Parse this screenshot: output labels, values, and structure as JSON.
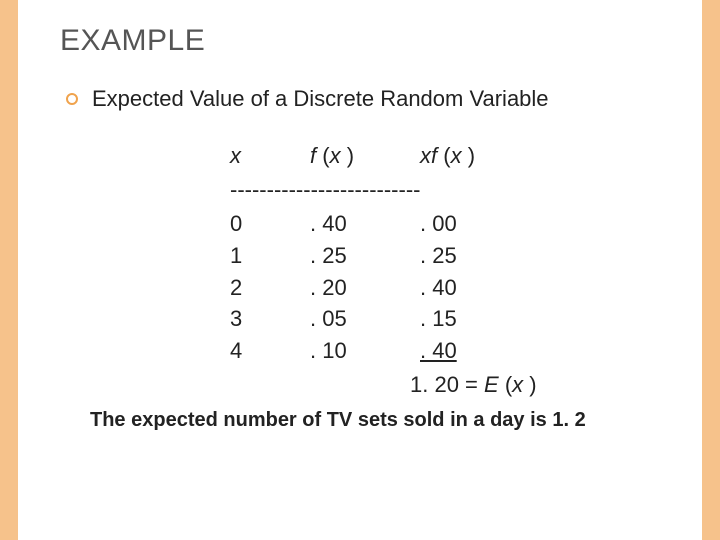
{
  "colors": {
    "stripe": "#f6c28b",
    "bullet_border": "#f0a34d",
    "title": "#555555",
    "body": "#222222",
    "background": "#ffffff"
  },
  "title": "EXAMPLE",
  "bullet_text": "Expected Value of a Discrete Random Variable",
  "table": {
    "header": {
      "x": "x",
      "fx_label_f": "f",
      "fx_label_paren": " (",
      "fx_label_x": "x",
      "fx_label_close": " )",
      "xfx_label_x1": "x",
      "xfx_label_f": "f",
      "xfx_label_paren": " (",
      "xfx_label_x2": "x",
      "xfx_label_close": " )"
    },
    "dash_line": "--------------------------",
    "rows": [
      {
        "x": "0",
        "fx": ". 40",
        "xfx": ". 00"
      },
      {
        "x": "1",
        "fx": ". 25",
        "xfx": ". 25"
      },
      {
        "x": "2",
        "fx": ". 20",
        "xfx": ". 40"
      },
      {
        "x": "3",
        "fx": ". 05",
        "xfx": ". 15"
      },
      {
        "x": "4",
        "fx": ". 10",
        "xfx": ". 40"
      }
    ],
    "result_value": "1. 20 = ",
    "result_E": "E",
    "result_paren_open": " (",
    "result_x": "x",
    "result_paren_close": " )"
  },
  "footer": "The expected number of TV sets sold in a day is 1. 2"
}
